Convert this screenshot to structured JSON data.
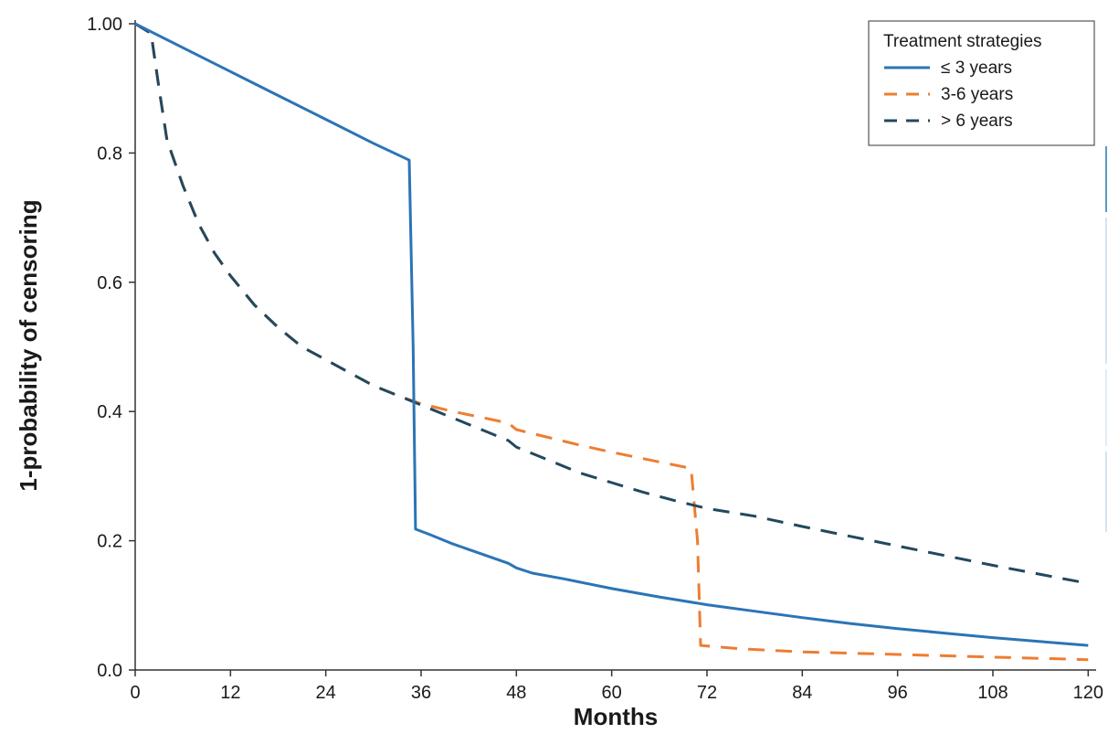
{
  "chart_data": {
    "type": "line",
    "xlabel": "Months",
    "ylabel": "1-probability of censoring",
    "xlim": [
      0,
      121
    ],
    "ylim": [
      0,
      1.0
    ],
    "x_ticks": [
      0,
      12,
      24,
      36,
      48,
      60,
      72,
      84,
      96,
      108,
      120
    ],
    "y_ticks": [
      0.0,
      0.2,
      0.4,
      0.6,
      0.8,
      1.0
    ],
    "y_tick_labels": [
      "0.0",
      "0.2",
      "0.4",
      "0.6",
      "0.8",
      "1.00"
    ],
    "grid": false,
    "legend": {
      "title": "Treatment strategies",
      "position": "top-right"
    },
    "series": [
      {
        "name": "≤ 3 years",
        "color": "#2b74b6",
        "style": "solid",
        "points": [
          [
            0,
            1.0
          ],
          [
            6,
            0.963
          ],
          [
            12,
            0.926
          ],
          [
            18,
            0.889
          ],
          [
            24,
            0.852
          ],
          [
            30,
            0.815
          ],
          [
            34.5,
            0.789
          ],
          [
            35.0,
            0.5
          ],
          [
            35.3,
            0.218
          ],
          [
            37,
            0.21
          ],
          [
            40,
            0.195
          ],
          [
            44,
            0.178
          ],
          [
            47,
            0.165
          ],
          [
            48,
            0.158
          ],
          [
            50,
            0.15
          ],
          [
            54,
            0.141
          ],
          [
            60,
            0.126
          ],
          [
            66,
            0.113
          ],
          [
            72,
            0.101
          ],
          [
            78,
            0.091
          ],
          [
            84,
            0.081
          ],
          [
            90,
            0.072
          ],
          [
            96,
            0.064
          ],
          [
            102,
            0.057
          ],
          [
            108,
            0.05
          ],
          [
            114,
            0.044
          ],
          [
            120,
            0.038
          ]
        ]
      },
      {
        "name": "3-6 years",
        "color": "#ee7d31",
        "style": "dashed",
        "points": [
          [
            0,
            1.0
          ],
          [
            2,
            0.985
          ],
          [
            3,
            0.9
          ],
          [
            4,
            0.82
          ],
          [
            6,
            0.75
          ],
          [
            8,
            0.69
          ],
          [
            10,
            0.645
          ],
          [
            12,
            0.61
          ],
          [
            15,
            0.565
          ],
          [
            18,
            0.53
          ],
          [
            21,
            0.5
          ],
          [
            24,
            0.48
          ],
          [
            27,
            0.46
          ],
          [
            30,
            0.44
          ],
          [
            33,
            0.425
          ],
          [
            36,
            0.412
          ],
          [
            40,
            0.4
          ],
          [
            44,
            0.39
          ],
          [
            47,
            0.382
          ],
          [
            48,
            0.372
          ],
          [
            52,
            0.36
          ],
          [
            56,
            0.348
          ],
          [
            60,
            0.337
          ],
          [
            64,
            0.327
          ],
          [
            68,
            0.317
          ],
          [
            70,
            0.312
          ],
          [
            70.8,
            0.2
          ],
          [
            71.2,
            0.038
          ],
          [
            76,
            0.033
          ],
          [
            84,
            0.028
          ],
          [
            96,
            0.024
          ],
          [
            108,
            0.02
          ],
          [
            120,
            0.016
          ]
        ]
      },
      {
        "name": "> 6 years",
        "color": "#21495e",
        "style": "dashed",
        "points": [
          [
            0,
            1.0
          ],
          [
            2,
            0.985
          ],
          [
            3,
            0.9
          ],
          [
            4,
            0.82
          ],
          [
            6,
            0.75
          ],
          [
            8,
            0.69
          ],
          [
            10,
            0.645
          ],
          [
            12,
            0.61
          ],
          [
            15,
            0.565
          ],
          [
            18,
            0.53
          ],
          [
            21,
            0.5
          ],
          [
            24,
            0.48
          ],
          [
            27,
            0.46
          ],
          [
            30,
            0.44
          ],
          [
            33,
            0.425
          ],
          [
            36,
            0.41
          ],
          [
            40,
            0.39
          ],
          [
            44,
            0.37
          ],
          [
            47,
            0.355
          ],
          [
            48,
            0.345
          ],
          [
            52,
            0.325
          ],
          [
            56,
            0.305
          ],
          [
            60,
            0.29
          ],
          [
            64,
            0.275
          ],
          [
            68,
            0.262
          ],
          [
            72,
            0.25
          ],
          [
            78,
            0.238
          ],
          [
            84,
            0.222
          ],
          [
            90,
            0.207
          ],
          [
            96,
            0.192
          ],
          [
            102,
            0.177
          ],
          [
            108,
            0.162
          ],
          [
            114,
            0.148
          ],
          [
            120,
            0.134
          ]
        ]
      }
    ]
  }
}
